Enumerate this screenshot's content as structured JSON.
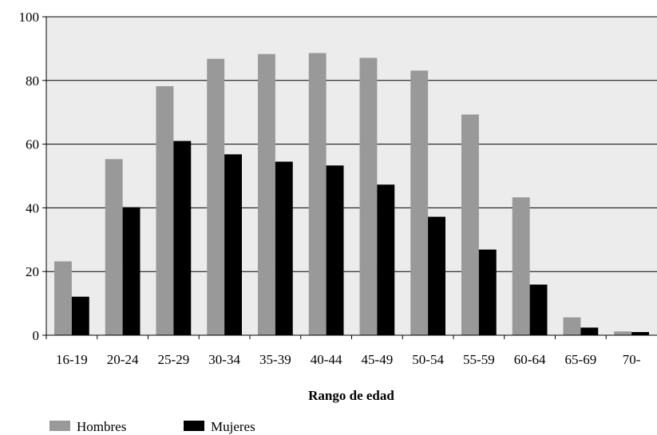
{
  "chart_data": {
    "type": "bar",
    "title": "",
    "xlabel": "Rango de edad",
    "ylabel": "",
    "categories": [
      "16-19",
      "20-24",
      "25-29",
      "30-34",
      "35-39",
      "40-44",
      "45-49",
      "50-54",
      "55-59",
      "60-64",
      "65-69",
      "70-"
    ],
    "series": [
      {
        "name": "Hombres",
        "color": "#999999",
        "values": [
          23.2,
          55.3,
          78.2,
          86.8,
          88.3,
          88.6,
          87.1,
          83.1,
          69.3,
          43.3,
          5.6,
          1.2
        ]
      },
      {
        "name": "Mujeres",
        "color": "#000000",
        "values": [
          12.1,
          40.2,
          61.0,
          56.8,
          54.5,
          53.3,
          47.3,
          37.2,
          26.9,
          15.9,
          2.4,
          1.0
        ]
      }
    ],
    "ylim": [
      0,
      100
    ],
    "yticks": [
      0,
      20,
      40,
      60,
      80,
      100
    ],
    "grid": true,
    "plot_background": "#ececec",
    "legend_position": "bottom-left"
  }
}
